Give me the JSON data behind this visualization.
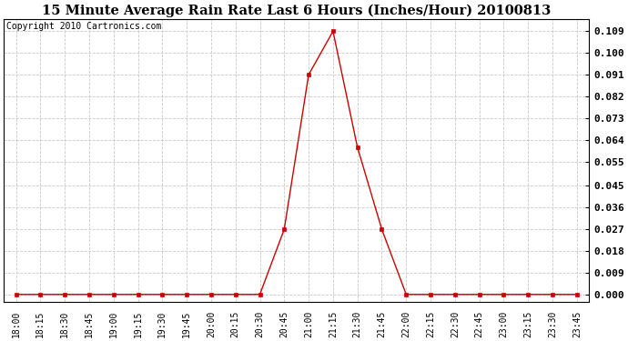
{
  "title": "15 Minute Average Rain Rate Last 6 Hours (Inches/Hour) 20100813",
  "copyright": "Copyright 2010 Cartronics.com",
  "background_color": "#ffffff",
  "plot_bg_color": "#ffffff",
  "grid_color": "#c8c8c8",
  "line_color": "#cc0000",
  "marker_color": "#cc0000",
  "tick_labels": [
    "18:00",
    "18:15",
    "18:30",
    "18:45",
    "19:00",
    "19:15",
    "19:30",
    "19:45",
    "20:00",
    "20:15",
    "20:30",
    "20:45",
    "21:00",
    "21:15",
    "21:30",
    "21:45",
    "22:00",
    "22:15",
    "22:30",
    "22:45",
    "23:00",
    "23:15",
    "23:30",
    "23:45"
  ],
  "values": [
    0.0,
    0.0,
    0.0,
    0.0,
    0.0,
    0.0,
    0.0,
    0.0,
    0.0,
    0.0,
    0.0,
    0.027,
    0.091,
    0.109,
    0.061,
    0.027,
    0.0,
    0.0,
    0.0,
    0.0,
    0.0,
    0.0,
    0.0,
    0.0
  ],
  "yticks": [
    0.0,
    0.009,
    0.018,
    0.027,
    0.036,
    0.045,
    0.055,
    0.064,
    0.073,
    0.082,
    0.091,
    0.1,
    0.109
  ],
  "ylim": [
    -0.003,
    0.114
  ],
  "title_fontsize": 10.5,
  "tick_fontsize": 7,
  "copyright_fontsize": 7,
  "ytick_fontsize": 8
}
